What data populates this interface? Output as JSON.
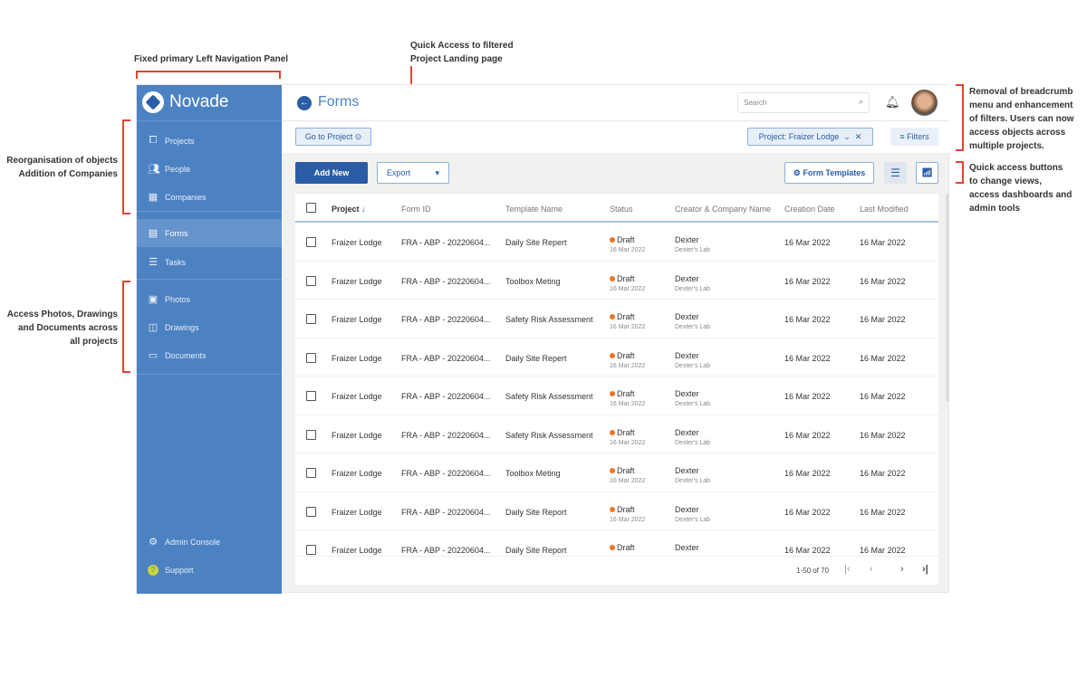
{
  "annotations": {
    "nav_panel": "Fixed primary Left Navigation Panel",
    "quick_access": [
      "Quick Access to filtered",
      "Project Landing page"
    ],
    "reorg": [
      "Reorganisation of objects",
      "Addition of Companies"
    ],
    "access_photos": [
      "Access Photos, Drawings",
      "and Documents across",
      "all projects"
    ],
    "breadcrumb": [
      "Removal of breadcrumb",
      "menu and enhancement",
      "of filters. Users can now",
      "access objects across",
      "multiple projects."
    ],
    "quick_buttons": [
      "Quick access buttons",
      "to change views,",
      "access dashboards and",
      "admin tools"
    ]
  },
  "brand": {
    "name": "Novade",
    "color": "#4d82c2"
  },
  "sidebar": {
    "items": [
      {
        "label": "Projects",
        "icon": "briefcase-icon"
      },
      {
        "label": "People",
        "icon": "people-icon"
      },
      {
        "label": "Companies",
        "icon": "building-icon"
      },
      {
        "label": "Forms",
        "icon": "form-icon",
        "active": true
      },
      {
        "label": "Tasks",
        "icon": "list-icon"
      },
      {
        "label": "Photos",
        "icon": "photo-icon"
      },
      {
        "label": "Drawings",
        "icon": "drawing-icon"
      },
      {
        "label": "Documents",
        "icon": "document-icon"
      }
    ],
    "admin": "Admin Console",
    "support": "Support"
  },
  "header": {
    "title": "Forms",
    "search_placeholder": "Search"
  },
  "filters": {
    "go_to_project": "Go to Project",
    "project_label": "Project:",
    "project_value": "Fraizer Lodge",
    "filters": "Filters"
  },
  "toolbar": {
    "add_new": "Add New",
    "export": "Export",
    "form_templates": "Form Templates"
  },
  "table": {
    "columns": [
      "Project",
      "Form ID",
      "Template Name",
      "Status",
      "Creator & Company Name",
      "Creation Date",
      "Last Modified"
    ],
    "rows": [
      {
        "project": "Fraizer Lodge",
        "form_id": "FRA - ABP - 20220604...",
        "template": "Daily Site Repert",
        "status": "Draft",
        "status_date": "16 Mar 2022",
        "creator": "Dexter",
        "company": "Dexter's Lab",
        "created": "16 Mar 2022",
        "modified": "16 Mar 2022"
      },
      {
        "project": "Fraizer Lodge",
        "form_id": "FRA - ABP - 20220604...",
        "template": "Toolbox Meting",
        "status": "Draft",
        "status_date": "16 Mar 2022",
        "creator": "Dexter",
        "company": "Dexter's Lab",
        "created": "16 Mar 2022",
        "modified": "16 Mar 2022"
      },
      {
        "project": "Fraizer Lodge",
        "form_id": "FRA - ABP - 20220604...",
        "template": "Safety Risk Assessment",
        "status": "Draft",
        "status_date": "16 Mar 2022",
        "creator": "Dexter",
        "company": "Dexter's Lab",
        "created": "16 Mar 2022",
        "modified": "16 Mar 2022"
      },
      {
        "project": "Fraizer Lodge",
        "form_id": "FRA - ABP - 20220604...",
        "template": "Daily Site Repert",
        "status": "Draft",
        "status_date": "16 Mar 2022",
        "creator": "Dexter",
        "company": "Dexter's Lab",
        "created": "16 Mar 2022",
        "modified": "16 Mar 2022"
      },
      {
        "project": "Fraizer Lodge",
        "form_id": "FRA - ABP - 20220604...",
        "template": "Safety Risk Assessment",
        "status": "Draft",
        "status_date": "16 Mar 2022",
        "creator": "Dexter",
        "company": "Dexter's Lab",
        "created": "16 Mar 2022",
        "modified": "16 Mar 2022"
      },
      {
        "project": "Fraizer Lodge",
        "form_id": "FRA - ABP - 20220604...",
        "template": "Safety Risk Assessment",
        "status": "Draft",
        "status_date": "16 Mar 2022",
        "creator": "Dexter",
        "company": "Dexter's Lab",
        "created": "16 Mar 2022",
        "modified": "16 Mar 2022"
      },
      {
        "project": "Fraizer Lodge",
        "form_id": "FRA - ABP - 20220604...",
        "template": "Toolbox Meting",
        "status": "Draft",
        "status_date": "16 Mar 2022",
        "creator": "Dexter",
        "company": "Dexter's Lab",
        "created": "16 Mar 2022",
        "modified": "16 Mar 2022"
      },
      {
        "project": "Fraizer Lodge",
        "form_id": "FRA - ABP - 20220604...",
        "template": "Daily Site Report",
        "status": "Draft",
        "status_date": "16 Mar 2022",
        "creator": "Dexter",
        "company": "Dexter's Lab",
        "created": "16 Mar 2022",
        "modified": "16 Mar 2022"
      },
      {
        "project": "Fraizer Lodge",
        "form_id": "FRA - ABP - 20220604...",
        "template": "Daily Site Report",
        "status": "Draft",
        "creator": "Dexter",
        "created": "16 Mar 2022",
        "modified": "16 Mar 2022"
      }
    ],
    "pagination": "1-50 of 70"
  },
  "colors": {
    "accent": "#2a5da6",
    "draft": "#f07522",
    "annotation": "#e0452b"
  }
}
